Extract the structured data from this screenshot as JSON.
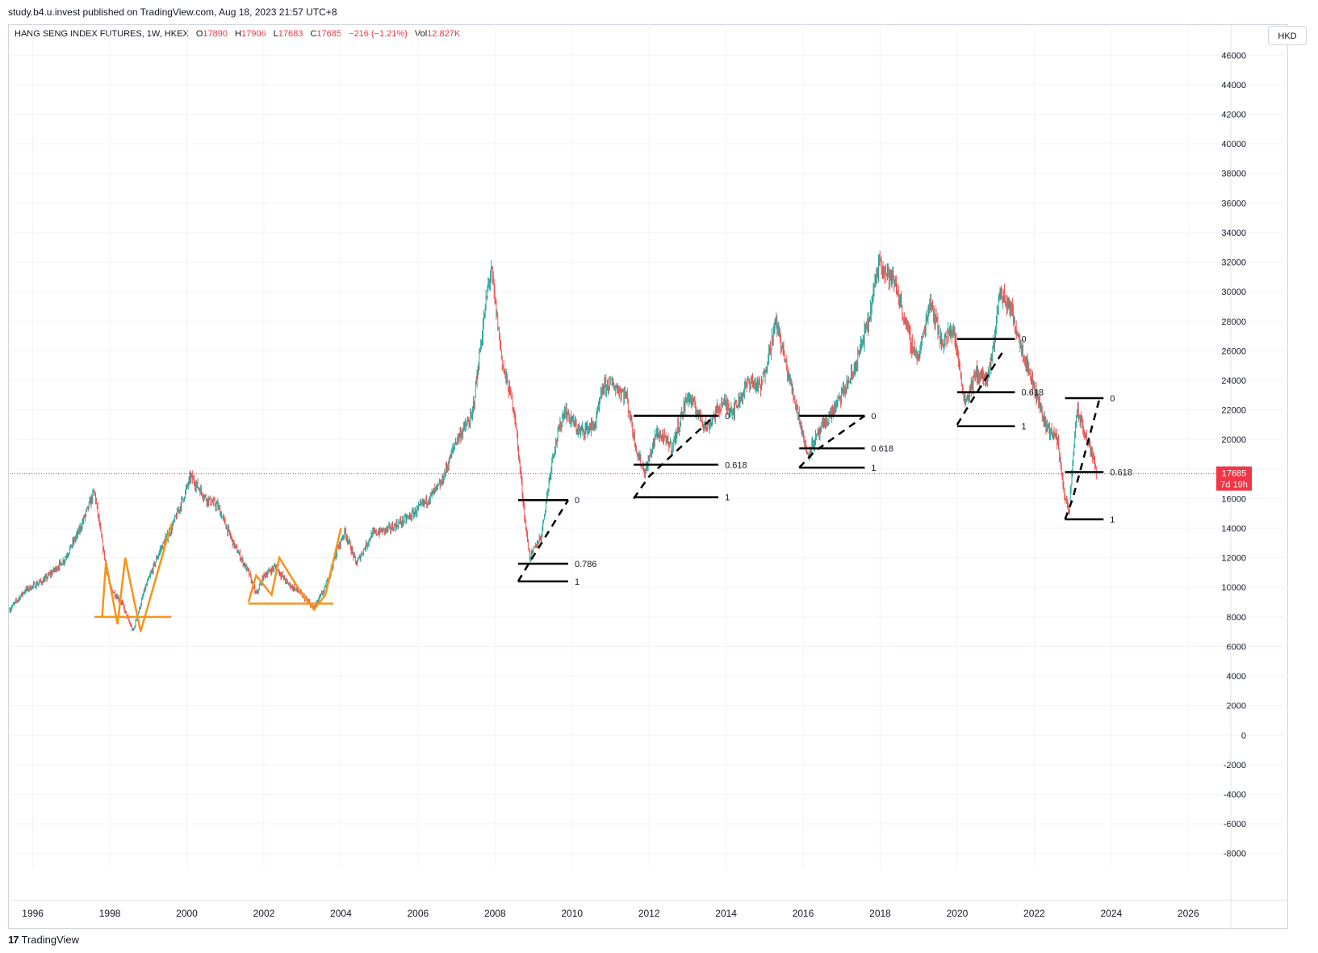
{
  "header": {
    "publish_line": "study.b4.u.invest published on TradingView.com, Aug 18, 2023 21:57 UTC+8"
  },
  "legend": {
    "symbol": "HANG SENG INDEX FUTURES, 1W, HKEX",
    "open_label": "O",
    "open": "17890",
    "high_label": "H",
    "high": "17906",
    "low_label": "L",
    "low": "17683",
    "close_label": "C",
    "close": "17685",
    "change": "−216 (−1.21%)",
    "vol_label": "Vol",
    "vol": "12.827K"
  },
  "currency_button": "HKD",
  "footer": {
    "logo_mark": "17",
    "brand": "TradingView"
  },
  "price_tag": {
    "price": "17685",
    "countdown": "7d 19h"
  },
  "colors": {
    "up": "#26a69a",
    "down": "#ef5350",
    "pattern": "#f7931a",
    "fib": "#000000",
    "last_price": "#f23645"
  },
  "chart_data": {
    "type": "candlestick",
    "title": "",
    "xlabel": "",
    "ylabel": "",
    "ylim": [
      -9000,
      47000
    ],
    "xlim": [
      1995.4,
      2027.0
    ],
    "grid": true,
    "y_ticks": [
      "-8000",
      "-6000",
      "-4000",
      "-2000",
      "0",
      "2000",
      "4000",
      "6000",
      "8000",
      "10000",
      "12000",
      "14000",
      "16000",
      "18000",
      "20000",
      "22000",
      "24000",
      "26000",
      "28000",
      "30000",
      "32000",
      "34000",
      "36000",
      "38000",
      "40000",
      "42000",
      "44000",
      "46000"
    ],
    "x_ticks": [
      "1996",
      "1998",
      "2000",
      "2002",
      "2004",
      "2006",
      "2008",
      "2010",
      "2012",
      "2014",
      "2016",
      "2018",
      "2020",
      "2022",
      "2024",
      "2026"
    ],
    "last_price": 17685,
    "price_path": [
      [
        1995.4,
        8500
      ],
      [
        1995.8,
        9800
      ],
      [
        1996.3,
        10500
      ],
      [
        1996.8,
        11800
      ],
      [
        1997.2,
        13800
      ],
      [
        1997.6,
        16500
      ],
      [
        1997.8,
        13000
      ],
      [
        1998.0,
        10000
      ],
      [
        1998.3,
        9000
      ],
      [
        1998.6,
        7000
      ],
      [
        1998.9,
        9800
      ],
      [
        1999.3,
        12500
      ],
      [
        1999.6,
        14000
      ],
      [
        1999.9,
        16000
      ],
      [
        2000.1,
        17500
      ],
      [
        2000.5,
        16000
      ],
      [
        2000.8,
        15500
      ],
      [
        2001.2,
        13000
      ],
      [
        2001.6,
        11000
      ],
      [
        2001.8,
        9500
      ],
      [
        2002.0,
        10800
      ],
      [
        2002.3,
        11400
      ],
      [
        2002.6,
        10300
      ],
      [
        2002.9,
        9700
      ],
      [
        2003.3,
        8600
      ],
      [
        2003.6,
        10000
      ],
      [
        2003.9,
        12500
      ],
      [
        2004.1,
        13800
      ],
      [
        2004.4,
        11600
      ],
      [
        2004.8,
        13600
      ],
      [
        2005.3,
        14000
      ],
      [
        2005.8,
        14800
      ],
      [
        2006.2,
        15800
      ],
      [
        2006.6,
        17000
      ],
      [
        2007.0,
        20000
      ],
      [
        2007.4,
        21500
      ],
      [
        2007.8,
        30000
      ],
      [
        2007.9,
        31500
      ],
      [
        2008.2,
        25000
      ],
      [
        2008.5,
        22000
      ],
      [
        2008.8,
        14000
      ],
      [
        2008.9,
        12000
      ],
      [
        2009.2,
        13500
      ],
      [
        2009.5,
        19000
      ],
      [
        2009.8,
        22000
      ],
      [
        2010.2,
        20500
      ],
      [
        2010.6,
        21000
      ],
      [
        2010.8,
        23500
      ],
      [
        2011.0,
        23800
      ],
      [
        2011.4,
        23000
      ],
      [
        2011.7,
        19000
      ],
      [
        2011.9,
        17800
      ],
      [
        2012.2,
        20500
      ],
      [
        2012.6,
        19500
      ],
      [
        2013.0,
        23000
      ],
      [
        2013.5,
        20800
      ],
      [
        2013.9,
        22500
      ],
      [
        2014.2,
        22000
      ],
      [
        2014.6,
        24000
      ],
      [
        2014.9,
        23500
      ],
      [
        2015.3,
        28000
      ],
      [
        2015.6,
        24500
      ],
      [
        2015.9,
        21500
      ],
      [
        2016.1,
        19000
      ],
      [
        2016.5,
        20800
      ],
      [
        2016.9,
        22500
      ],
      [
        2017.3,
        24500
      ],
      [
        2017.7,
        28000
      ],
      [
        2018.0,
        32500
      ],
      [
        2018.1,
        31500
      ],
      [
        2018.4,
        30500
      ],
      [
        2018.8,
        26500
      ],
      [
        2019.0,
        25500
      ],
      [
        2019.3,
        29500
      ],
      [
        2019.6,
        26500
      ],
      [
        2019.9,
        27500
      ],
      [
        2020.2,
        22500
      ],
      [
        2020.5,
        24500
      ],
      [
        2020.8,
        24000
      ],
      [
        2020.95,
        26500
      ],
      [
        2021.1,
        30000
      ],
      [
        2021.4,
        28800
      ],
      [
        2021.7,
        26000
      ],
      [
        2022.0,
        23500
      ],
      [
        2022.3,
        21000
      ],
      [
        2022.6,
        20000
      ],
      [
        2022.8,
        16000
      ],
      [
        2022.9,
        15000
      ],
      [
        2023.1,
        22000
      ],
      [
        2023.3,
        20500
      ],
      [
        2023.5,
        19000
      ],
      [
        2023.63,
        17685
      ]
    ],
    "annotations": {
      "patterns": [
        {
          "points": [
            [
              1997.8,
              8000
            ],
            [
              1997.9,
              11700
            ],
            [
              1998.2,
              7500
            ],
            [
              1998.4,
              12000
            ],
            [
              1998.8,
              7000
            ],
            [
              1999.6,
              14300
            ]
          ],
          "baseline": [
            1997.6,
            1999.6,
            8000
          ]
        },
        {
          "points": [
            [
              2001.6,
              9000
            ],
            [
              2001.8,
              10800
            ],
            [
              2002.2,
              9500
            ],
            [
              2002.4,
              12000
            ],
            [
              2003.0,
              9500
            ],
            [
              2003.3,
              8500
            ],
            [
              2003.6,
              9500
            ],
            [
              2004.0,
              14000
            ]
          ],
          "baseline": [
            2001.6,
            2003.8,
            8900
          ]
        }
      ],
      "fib_sets": [
        {
          "x1": 2008.6,
          "x2": 2009.9,
          "diag": [
            [
              2008.6,
              10400
            ],
            [
              2008.9,
              11700
            ],
            [
              2009.9,
              15900
            ]
          ],
          "levels": [
            {
              "label": "0",
              "value": 15900
            },
            {
              "label": "0.786",
              "value": 11600
            },
            {
              "label": "1",
              "value": 10400
            }
          ]
        },
        {
          "x1": 2011.6,
          "x2": 2013.8,
          "diag": [
            [
              2011.6,
              16000
            ],
            [
              2012.0,
              17500
            ],
            [
              2013.7,
              21600
            ]
          ],
          "levels": [
            {
              "label": "0",
              "value": 21600
            },
            {
              "label": "0.618",
              "value": 18300
            },
            {
              "label": "1",
              "value": 16100
            }
          ]
        },
        {
          "x1": 2015.9,
          "x2": 2017.6,
          "diag": [
            [
              2015.9,
              18100
            ],
            [
              2016.3,
              19200
            ],
            [
              2017.6,
              21600
            ]
          ],
          "levels": [
            {
              "label": "0",
              "value": 21600
            },
            {
              "label": "0.618",
              "value": 19400
            },
            {
              "label": "1",
              "value": 18100
            }
          ]
        },
        {
          "x1": 2020.0,
          "x2": 2021.5,
          "diag": [
            [
              2020.0,
              21000
            ],
            [
              2020.3,
              22300
            ],
            [
              2021.2,
              26000
            ]
          ],
          "levels": [
            {
              "label": "0",
              "value": 26800
            },
            {
              "label": "0.618",
              "value": 23200
            },
            {
              "label": "1",
              "value": 20900
            }
          ]
        },
        {
          "x1": 2022.8,
          "x2": 2023.8,
          "diag": [
            [
              2022.8,
              14600
            ],
            [
              2023.0,
              16000
            ],
            [
              2023.7,
              22800
            ]
          ],
          "levels": [
            {
              "label": "0",
              "value": 22800
            },
            {
              "label": "0.618",
              "value": 17800
            },
            {
              "label": "1",
              "value": 14600
            }
          ]
        }
      ]
    }
  }
}
